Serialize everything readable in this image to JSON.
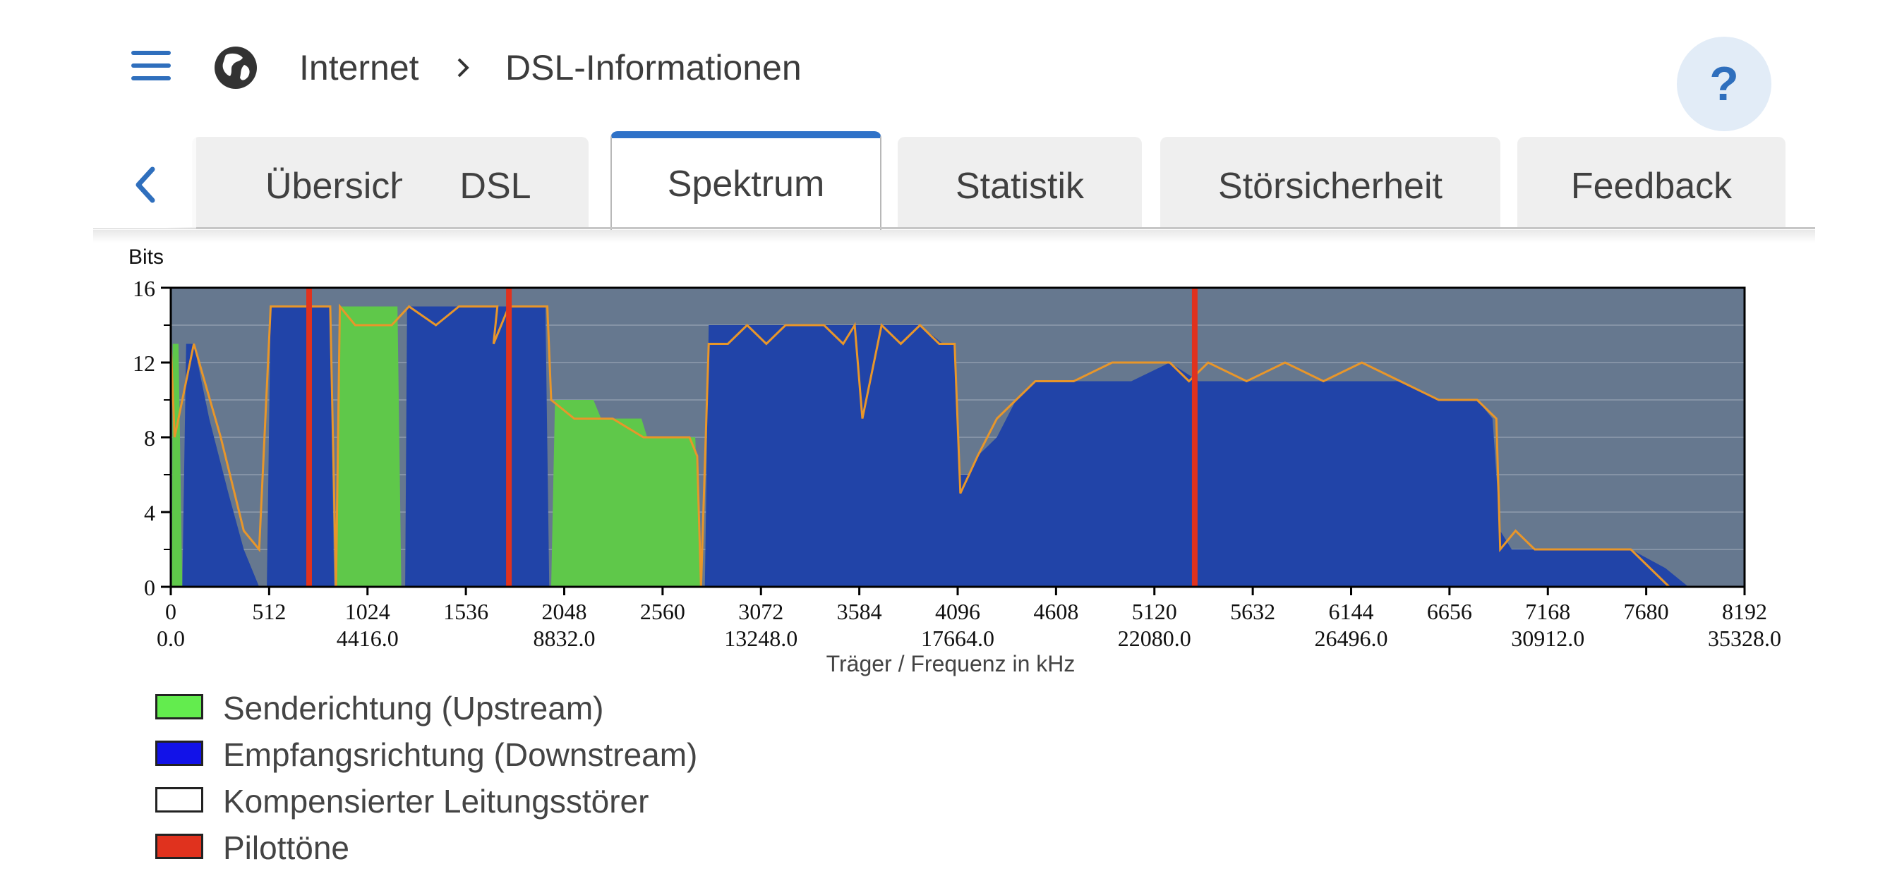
{
  "header": {
    "breadcrumb_root": "Internet",
    "breadcrumb_page": "DSL-Informationen",
    "help_label": "?"
  },
  "tabs": [
    {
      "label": "Übersicht",
      "active": false
    },
    {
      "label": "DSL",
      "active": false
    },
    {
      "label": "Spektrum",
      "active": true
    },
    {
      "label": "Statistik",
      "active": false
    },
    {
      "label": "Störsicherheit",
      "active": false
    },
    {
      "label": "Feedback",
      "active": false
    }
  ],
  "colors": {
    "accent": "#2f72c8",
    "plot_bg": "#66788f",
    "upstream": "#5fc84a",
    "downstream": "#2144a8",
    "pilot": "#e0321e",
    "snr_line": "#e8962a"
  },
  "chart_data": {
    "type": "area",
    "ylabel": "Bits",
    "xlabel": "Träger / Frequenz in kHz",
    "ylim": [
      0,
      16
    ],
    "xlim": [
      0,
      8192
    ],
    "yticks": [
      "0",
      "4",
      "8",
      "12",
      "16"
    ],
    "xticks_carrier": [
      "0",
      "512",
      "1024",
      "1536",
      "2048",
      "2560",
      "3072",
      "3584",
      "4096",
      "4608",
      "5120",
      "5632",
      "6144",
      "6656",
      "7168",
      "7680",
      "8192"
    ],
    "xticks_freq": [
      "0.0",
      "4416.0",
      "8832.0",
      "13248.0",
      "17664.0",
      "22080.0",
      "26496.0",
      "30912.0",
      "35328.0"
    ],
    "series": [
      {
        "name": "Senderichtung (Upstream)",
        "points": [
          [
            6,
            0
          ],
          [
            10,
            13
          ],
          [
            40,
            13
          ],
          [
            60,
            0
          ],
          [
            860,
            0
          ],
          [
            880,
            15
          ],
          [
            1180,
            15
          ],
          [
            1200,
            0
          ],
          [
            1980,
            0
          ],
          [
            2000,
            10
          ],
          [
            2200,
            10
          ],
          [
            2240,
            9
          ],
          [
            2450,
            9
          ],
          [
            2480,
            8
          ],
          [
            2730,
            8
          ],
          [
            2760,
            0
          ]
        ]
      },
      {
        "name": "Empfangsrichtung (Downstream)",
        "points": [
          [
            60,
            0
          ],
          [
            80,
            13
          ],
          [
            120,
            13
          ],
          [
            200,
            9
          ],
          [
            300,
            5
          ],
          [
            380,
            2
          ],
          [
            460,
            0
          ],
          [
            500,
            0
          ],
          [
            520,
            15
          ],
          [
            830,
            15
          ],
          [
            850,
            0
          ],
          [
            1220,
            0
          ],
          [
            1230,
            15
          ],
          [
            1950,
            15
          ],
          [
            1970,
            0
          ],
          [
            2780,
            0
          ],
          [
            2800,
            14
          ],
          [
            3100,
            14
          ],
          [
            3300,
            14
          ],
          [
            3600,
            14
          ],
          [
            3900,
            14
          ],
          [
            4020,
            13
          ],
          [
            4080,
            13
          ],
          [
            4110,
            6
          ],
          [
            4150,
            6
          ],
          [
            4200,
            7
          ],
          [
            4300,
            8
          ],
          [
            4400,
            10
          ],
          [
            4500,
            11
          ],
          [
            5000,
            11
          ],
          [
            5200,
            12
          ],
          [
            5350,
            11
          ],
          [
            5600,
            11
          ],
          [
            5800,
            11
          ],
          [
            6000,
            11
          ],
          [
            6200,
            11
          ],
          [
            6400,
            11
          ],
          [
            6600,
            10
          ],
          [
            6800,
            10
          ],
          [
            6880,
            9
          ],
          [
            6920,
            3
          ],
          [
            6980,
            2
          ],
          [
            7600,
            2
          ],
          [
            7780,
            1
          ],
          [
            7900,
            0
          ]
        ]
      }
    ],
    "snr_curve": [
      [
        0,
        13
      ],
      [
        20,
        8
      ],
      [
        60,
        10
      ],
      [
        120,
        13
      ],
      [
        260,
        8
      ],
      [
        380,
        3
      ],
      [
        460,
        2
      ],
      [
        520,
        15
      ],
      [
        830,
        15
      ],
      [
        860,
        0
      ],
      [
        880,
        15
      ],
      [
        960,
        14
      ],
      [
        1040,
        14
      ],
      [
        1150,
        14
      ],
      [
        1240,
        15
      ],
      [
        1380,
        14
      ],
      [
        1500,
        15
      ],
      [
        1700,
        15
      ],
      [
        1680,
        13
      ],
      [
        1760,
        15
      ],
      [
        1960,
        15
      ],
      [
        1980,
        10
      ],
      [
        2100,
        9
      ],
      [
        2300,
        9
      ],
      [
        2460,
        8
      ],
      [
        2700,
        8
      ],
      [
        2740,
        7
      ],
      [
        2760,
        0
      ],
      [
        2800,
        13
      ],
      [
        2900,
        13
      ],
      [
        3000,
        14
      ],
      [
        3100,
        13
      ],
      [
        3200,
        14
      ],
      [
        3400,
        14
      ],
      [
        3500,
        13
      ],
      [
        3560,
        14
      ],
      [
        3600,
        9
      ],
      [
        3700,
        14
      ],
      [
        3800,
        13
      ],
      [
        3900,
        14
      ],
      [
        4000,
        13
      ],
      [
        4080,
        13
      ],
      [
        4110,
        5
      ],
      [
        4200,
        7
      ],
      [
        4300,
        9
      ],
      [
        4400,
        10
      ],
      [
        4500,
        11
      ],
      [
        4700,
        11
      ],
      [
        4900,
        12
      ],
      [
        5200,
        12
      ],
      [
        5300,
        11
      ],
      [
        5400,
        12
      ],
      [
        5600,
        11
      ],
      [
        5800,
        12
      ],
      [
        6000,
        11
      ],
      [
        6200,
        12
      ],
      [
        6400,
        11
      ],
      [
        6600,
        10
      ],
      [
        6800,
        10
      ],
      [
        6900,
        9
      ],
      [
        6920,
        2
      ],
      [
        7000,
        3
      ],
      [
        7100,
        2
      ],
      [
        7600,
        2
      ],
      [
        7800,
        0
      ]
    ],
    "pilot_tones": [
      720,
      1760,
      5330
    ],
    "legend": [
      {
        "label": "Senderichtung (Upstream)",
        "color": "#63ec4e"
      },
      {
        "label": "Empfangsrichtung (Downstream)",
        "color": "#1212e8"
      },
      {
        "label": "Kompensierter Leitungsstörer",
        "color": "#ffffff"
      },
      {
        "label": "Pilottöne",
        "color": "#e0321e"
      }
    ]
  }
}
